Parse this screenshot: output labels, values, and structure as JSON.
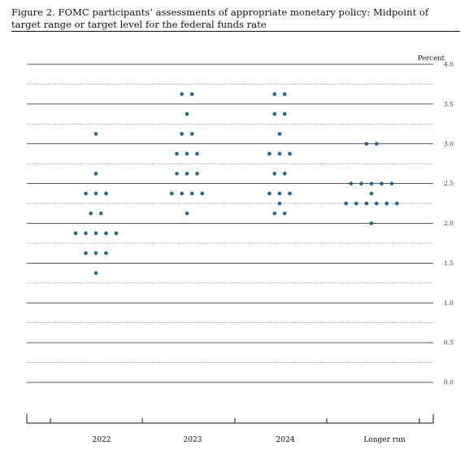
{
  "figure": {
    "title": "Figure 2. FOMC participants’ assessments of appropriate monetary policy: Midpoint of target range or target level for the federal funds rate"
  },
  "chart_data": {
    "type": "scatter",
    "title": "Figure 2. FOMC participants’ assessments of appropriate monetary policy: Midpoint of target range or target level for the federal funds rate",
    "xlabel": "",
    "ylabel": "Percent",
    "categories": [
      "2022",
      "2023",
      "2024",
      "Longer run"
    ],
    "ylim": [
      0,
      4.0
    ],
    "y_ticks": [
      {
        "value": 0.0,
        "label": "0.0"
      },
      {
        "value": 0.5,
        "label": "0.5"
      },
      {
        "value": 1.0,
        "label": "1.0"
      },
      {
        "value": 1.5,
        "label": "1.5"
      },
      {
        "value": 2.0,
        "label": "2.0"
      },
      {
        "value": 2.5,
        "label": "2.5"
      },
      {
        "value": 3.0,
        "label": "3.0"
      },
      {
        "value": 3.5,
        "label": "3.5"
      },
      {
        "value": 4.0,
        "label": "4.0"
      }
    ],
    "grid": true,
    "dot_color": "#1f6690",
    "dots": [
      {
        "category": "2022",
        "y": 3.125,
        "count": 1
      },
      {
        "category": "2022",
        "y": 2.625,
        "count": 1
      },
      {
        "category": "2022",
        "y": 2.375,
        "count": 3
      },
      {
        "category": "2022",
        "y": 2.125,
        "count": 2
      },
      {
        "category": "2022",
        "y": 1.875,
        "count": 5
      },
      {
        "category": "2022",
        "y": 1.625,
        "count": 3
      },
      {
        "category": "2022",
        "y": 1.375,
        "count": 1
      },
      {
        "category": "2023",
        "y": 3.625,
        "count": 2
      },
      {
        "category": "2023",
        "y": 3.375,
        "count": 1
      },
      {
        "category": "2023",
        "y": 3.125,
        "count": 2
      },
      {
        "category": "2023",
        "y": 2.875,
        "count": 3
      },
      {
        "category": "2023",
        "y": 2.625,
        "count": 3
      },
      {
        "category": "2023",
        "y": 2.375,
        "count": 4
      },
      {
        "category": "2023",
        "y": 2.125,
        "count": 1
      },
      {
        "category": "2024",
        "y": 3.625,
        "count": 2
      },
      {
        "category": "2024",
        "y": 3.375,
        "count": 2
      },
      {
        "category": "2024",
        "y": 3.125,
        "count": 1
      },
      {
        "category": "2024",
        "y": 2.875,
        "count": 3
      },
      {
        "category": "2024",
        "y": 2.625,
        "count": 2
      },
      {
        "category": "2024",
        "y": 2.375,
        "count": 3
      },
      {
        "category": "2024",
        "y": 2.25,
        "count": 1
      },
      {
        "category": "2024",
        "y": 2.125,
        "count": 2
      },
      {
        "category": "Longer run",
        "y": 3.0,
        "count": 2
      },
      {
        "category": "Longer run",
        "y": 2.5,
        "count": 5
      },
      {
        "category": "Longer run",
        "y": 2.375,
        "count": 1
      },
      {
        "category": "Longer run",
        "y": 2.25,
        "count": 6
      },
      {
        "category": "Longer run",
        "y": 2.0,
        "count": 1
      }
    ]
  }
}
